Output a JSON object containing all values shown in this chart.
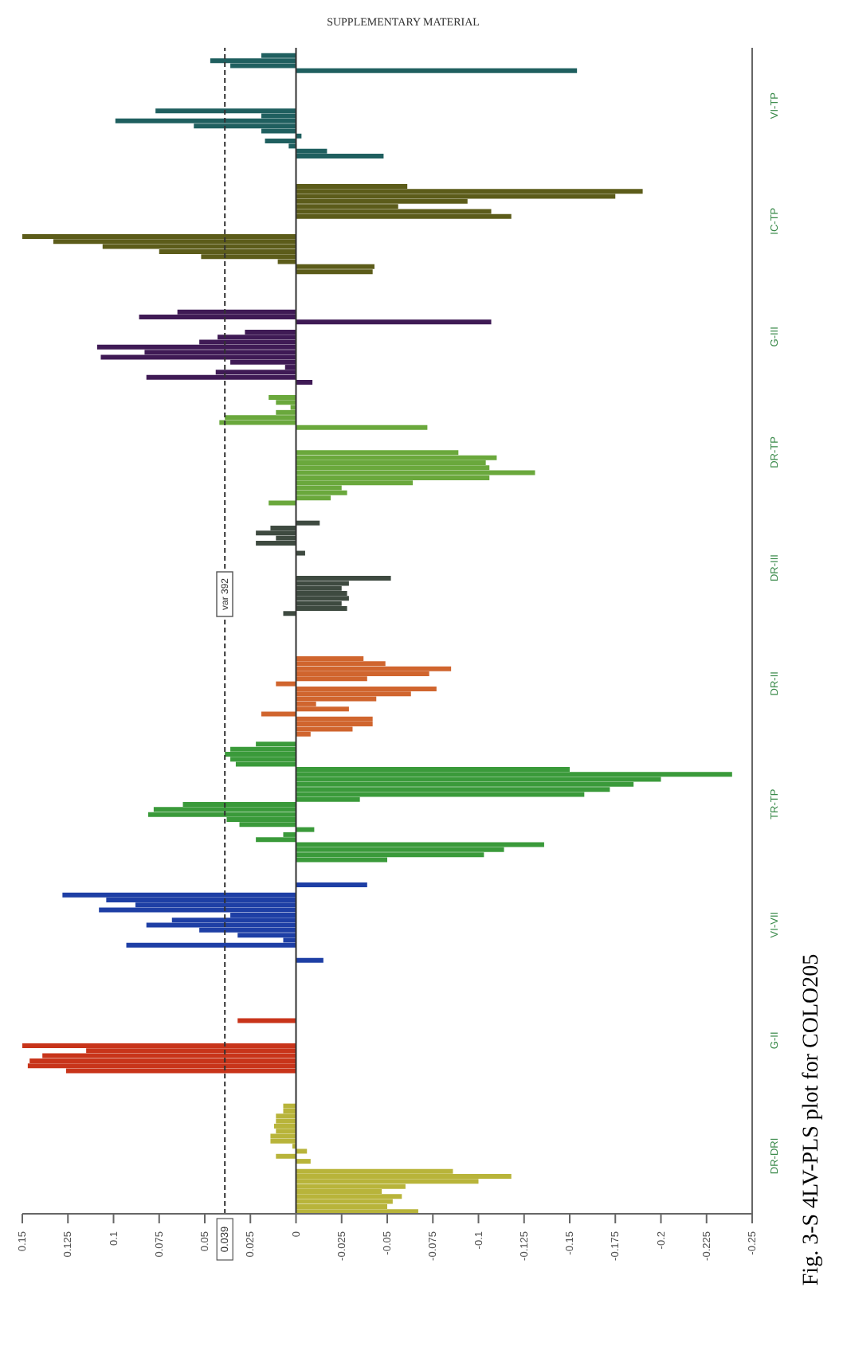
{
  "chart_data": {
    "type": "bar",
    "orientation": "horizontal",
    "categories": [
      null,
      null,
      null,
      null,
      null,
      null,
      null,
      null,
      null,
      null,
      null,
      "VI-TP",
      null,
      null,
      null,
      null,
      null,
      null,
      null,
      null,
      null,
      null,
      null,
      null,
      null,
      null,
      null,
      null,
      null,
      null,
      null,
      null,
      null,
      null,
      "IC-TP",
      null,
      null,
      null,
      null,
      null,
      null,
      null,
      null,
      null,
      null,
      null,
      null,
      null,
      null,
      null,
      null,
      null,
      null,
      null,
      null,
      null,
      null,
      "G-III",
      null,
      null,
      null,
      null,
      null,
      null,
      null,
      null,
      null,
      null,
      null,
      null,
      null,
      null,
      null,
      null,
      null,
      null,
      null,
      null,
      null,
      null,
      "DR-TP",
      null,
      null,
      null,
      null,
      null,
      null,
      null,
      null,
      null,
      null,
      null,
      null,
      null,
      null,
      null,
      null,
      null,
      null,
      null,
      null,
      null,
      null,
      "DR-III",
      null,
      null,
      null,
      null,
      null,
      null,
      null,
      null,
      null,
      null,
      null,
      null,
      null,
      null,
      null,
      null,
      null,
      null,
      null,
      null,
      null,
      null,
      "DR-II",
      null,
      null,
      null,
      null,
      null,
      null,
      null,
      null,
      null,
      null,
      null,
      null,
      null,
      null,
      null,
      null,
      null,
      null,
      null,
      null,
      null,
      null,
      null,
      "TR-TP",
      null,
      null,
      null,
      null,
      null,
      null,
      null,
      null,
      null,
      null,
      null,
      null,
      null,
      null,
      null,
      null,
      null,
      null,
      null,
      null,
      null,
      null,
      null,
      "VI-VII",
      null,
      null,
      null,
      null,
      null,
      null,
      null,
      null,
      null,
      null,
      null,
      null,
      null,
      null,
      null,
      null,
      null,
      null,
      null,
      null,
      null,
      null,
      "G-II",
      null,
      null,
      null,
      null,
      null,
      null,
      null,
      null,
      null,
      null,
      null,
      null,
      null,
      null,
      null,
      null,
      null,
      null,
      null,
      null,
      null,
      null,
      "DR-DRI",
      null,
      null,
      null,
      null,
      null,
      null,
      null,
      null,
      null,
      null,
      null
    ],
    "values": [
      null,
      0.019,
      0.047,
      0.036,
      -0.154,
      null,
      null,
      null,
      null,
      null,
      null,
      null,
      0.077,
      0.019,
      0.099,
      0.056,
      0.019,
      -0.003,
      0.017,
      0.004,
      -0.017,
      -0.048,
      null,
      null,
      null,
      null,
      null,
      -0.061,
      -0.19,
      -0.175,
      -0.094,
      -0.056,
      -0.107,
      -0.118,
      null,
      null,
      null,
      0.15,
      0.133,
      0.106,
      0.075,
      0.052,
      0.01,
      -0.043,
      -0.042,
      null,
      null,
      null,
      null,
      null,
      null,
      null,
      0.065,
      0.086,
      -0.107,
      null,
      0.028,
      0.043,
      0.053,
      0.109,
      0.083,
      0.107,
      0.036,
      0.006,
      0.044,
      0.082,
      -0.009,
      null,
      null,
      0.015,
      0.011,
      0.003,
      0.011,
      0.039,
      0.042,
      -0.072,
      null,
      null,
      null,
      null,
      -0.089,
      -0.11,
      -0.104,
      -0.106,
      -0.131,
      -0.106,
      -0.064,
      -0.025,
      -0.028,
      -0.019,
      0.015,
      null,
      null,
      null,
      -0.013,
      0.014,
      0.022,
      0.011,
      0.022,
      null,
      -0.005,
      null,
      null,
      null,
      null,
      -0.052,
      -0.029,
      -0.025,
      -0.028,
      -0.029,
      -0.025,
      -0.028,
      0.007,
      null,
      null,
      null,
      null,
      null,
      null,
      null,
      null,
      -0.037,
      -0.049,
      -0.085,
      -0.073,
      -0.039,
      0.011,
      -0.077,
      -0.063,
      -0.044,
      -0.011,
      -0.029,
      0.019,
      -0.042,
      -0.042,
      -0.031,
      -0.008,
      null,
      0.022,
      0.036,
      0.039,
      0.036,
      0.033,
      -0.15,
      -0.239,
      -0.2,
      -0.185,
      -0.172,
      -0.158,
      -0.035,
      0.062,
      0.078,
      0.081,
      0.038,
      0.031,
      -0.01,
      0.007,
      0.022,
      -0.136,
      -0.114,
      -0.103,
      -0.05,
      null,
      null,
      null,
      null,
      -0.039,
      null,
      0.128,
      0.104,
      0.088,
      0.108,
      0.036,
      0.068,
      0.082,
      0.053,
      0.032,
      0.007,
      0.093,
      null,
      null,
      -0.015,
      null,
      null,
      null,
      null,
      null,
      null,
      null,
      null,
      null,
      null,
      null,
      0.032,
      null,
      null,
      null,
      null,
      0.15,
      0.115,
      0.139,
      0.146,
      0.147,
      0.126,
      null,
      null,
      null,
      null,
      null,
      null,
      0.007,
      0.007,
      0.011,
      0.011,
      0.012,
      0.011,
      0.014,
      0.014,
      0.002,
      -0.006,
      0.011,
      -0.008,
      null,
      -0.086,
      -0.118,
      -0.1,
      -0.06,
      -0.047,
      -0.058,
      -0.053,
      -0.05,
      -0.067
    ],
    "colors": [
      "#1f5f5f",
      "#1f5f5f",
      "#1f5f5f",
      "#1f5f5f",
      "#1f5f5f",
      "#1f5f5f",
      "#1f5f5f",
      "#1f5f5f",
      "#1f5f5f",
      "#1f5f5f",
      "#1f5f5f",
      "#1f5f5f",
      "#1f5f5f",
      "#1f5f5f",
      "#1f5f5f",
      "#1f5f5f",
      "#1f5f5f",
      "#1f5f5f",
      "#1f5f5f",
      "#1f5f5f",
      "#1f5f5f",
      "#1f5f5f",
      "#1f5f5f",
      "#5c5c1a",
      "#5c5c1a",
      "#5c5c1a",
      "#5c5c1a",
      "#5c5c1a",
      "#5c5c1a",
      "#5c5c1a",
      "#5c5c1a",
      "#5c5c1a",
      "#5c5c1a",
      "#5c5c1a",
      "#5c5c1a",
      "#5c5c1a",
      "#5c5c1a",
      "#5c5c1a",
      "#5c5c1a",
      "#5c5c1a",
      "#5c5c1a",
      "#5c5c1a",
      "#5c5c1a",
      "#5c5c1a",
      "#5c5c1a",
      "#5c5c1a",
      "#3f1a55",
      "#3f1a55",
      "#3f1a55",
      "#3f1a55",
      "#3f1a55",
      "#3f1a55",
      "#3f1a55",
      "#3f1a55",
      "#3f1a55",
      "#3f1a55",
      "#3f1a55",
      "#3f1a55",
      "#3f1a55",
      "#3f1a55",
      "#3f1a55",
      "#3f1a55",
      "#3f1a55",
      "#3f1a55",
      "#3f1a55",
      "#3f1a55",
      "#3f1a55",
      "#3f1a55",
      "#3f1a55",
      "#6aa83c",
      "#6aa83c",
      "#6aa83c",
      "#6aa83c",
      "#6aa83c",
      "#6aa83c",
      "#6aa83c",
      "#6aa83c",
      "#6aa83c",
      "#6aa83c",
      "#6aa83c",
      "#6aa83c",
      "#6aa83c",
      "#6aa83c",
      "#6aa83c",
      "#6aa83c",
      "#6aa83c",
      "#6aa83c",
      "#6aa83c",
      "#6aa83c",
      "#6aa83c",
      "#6aa83c",
      "#6aa83c",
      "#3e4a40",
      "#3e4a40",
      "#3e4a40",
      "#3e4a40",
      "#3e4a40",
      "#3e4a40",
      "#3e4a40",
      "#3e4a40",
      "#3e4a40",
      "#3e4a40",
      "#3e4a40",
      "#3e4a40",
      "#3e4a40",
      "#3e4a40",
      "#3e4a40",
      "#3e4a40",
      "#3e4a40",
      "#3e4a40",
      "#3e4a40",
      "#3e4a40",
      "#3e4a40",
      "#3e4a40",
      "#3e4a40",
      "#d0652e",
      "#d0652e",
      "#d0652e",
      "#d0652e",
      "#d0652e",
      "#d0652e",
      "#d0652e",
      "#d0652e",
      "#d0652e",
      "#d0652e",
      "#d0652e",
      "#d0652e",
      "#d0652e",
      "#d0652e",
      "#d0652e",
      "#d0652e",
      "#d0652e",
      "#d0652e",
      "#d0652e",
      "#d0652e",
      "#d0652e",
      "#d0652e",
      "#d0652e",
      "#3a9a3a",
      "#3a9a3a",
      "#3a9a3a",
      "#3a9a3a",
      "#3a9a3a",
      "#3a9a3a",
      "#3a9a3a",
      "#3a9a3a",
      "#3a9a3a",
      "#3a9a3a",
      "#3a9a3a",
      "#3a9a3a",
      "#3a9a3a",
      "#3a9a3a",
      "#3a9a3a",
      "#3a9a3a",
      "#3a9a3a",
      "#3a9a3a",
      "#3a9a3a",
      "#3a9a3a",
      "#3a9a3a",
      "#3a9a3a",
      "#3a9a3a",
      "#3a9a3a",
      "#1e3fa5",
      "#1e3fa5",
      "#1e3fa5",
      "#1e3fa5",
      "#1e3fa5",
      "#1e3fa5",
      "#1e3fa5",
      "#1e3fa5",
      "#1e3fa5",
      "#1e3fa5",
      "#1e3fa5",
      "#1e3fa5",
      "#1e3fa5",
      "#1e3fa5",
      "#1e3fa5",
      "#1e3fa5",
      "#1e3fa5",
      "#1e3fa5",
      "#1e3fa5",
      "#1e3fa5",
      "#1e3fa5",
      "#1e3fa5",
      "#1e3fa5",
      "#1e3fa5",
      "#c8341a",
      "#c8341a",
      "#c8341a",
      "#c8341a",
      "#c8341a",
      "#c8341a",
      "#c8341a",
      "#c8341a",
      "#c8341a",
      "#c8341a",
      "#c8341a",
      "#c8341a",
      "#c8341a",
      "#c8341a",
      "#c8341a",
      "#c8341a",
      "#c8341a",
      "#c8341a",
      "#c8341a",
      "#c8341a",
      "#c8341a",
      "#c8341a",
      "#c8341a",
      "#b8b43a",
      "#b8b43a",
      "#b8b43a",
      "#b8b43a",
      "#b8b43a",
      "#b8b43a",
      "#b8b43a",
      "#b8b43a",
      "#b8b43a",
      "#b8b43a",
      "#b8b43a",
      "#b8b43a",
      "#b8b43a",
      "#b8b43a",
      "#b8b43a",
      "#b8b43a",
      "#b8b43a",
      "#b8b43a",
      "#b8b43a",
      "#b8b43a",
      "#b8b43a",
      "#b8b43a",
      "#b8b43a"
    ],
    "xlim": [
      0.15,
      -0.25
    ],
    "xticks": [
      0.15,
      0.125,
      0.1,
      0.075,
      0.05,
      0.025,
      0,
      -0.025,
      -0.05,
      -0.075,
      -0.1,
      -0.125,
      -0.15,
      -0.175,
      -0.2,
      -0.225,
      -0.25
    ],
    "ref_lines": [
      {
        "axis": "x",
        "value": 0.039,
        "label": "0.039",
        "line_style": "dashed"
      },
      {
        "axis": "x",
        "value": 0,
        "line_style": "solid"
      }
    ],
    "annotations": [
      "SUPPLEMENTARY MATERIAL",
      {
        "text": "var 392",
        "x": 0.039
      },
      "Fig. 3-S 4LV-PLS plot for COLO205"
    ]
  }
}
